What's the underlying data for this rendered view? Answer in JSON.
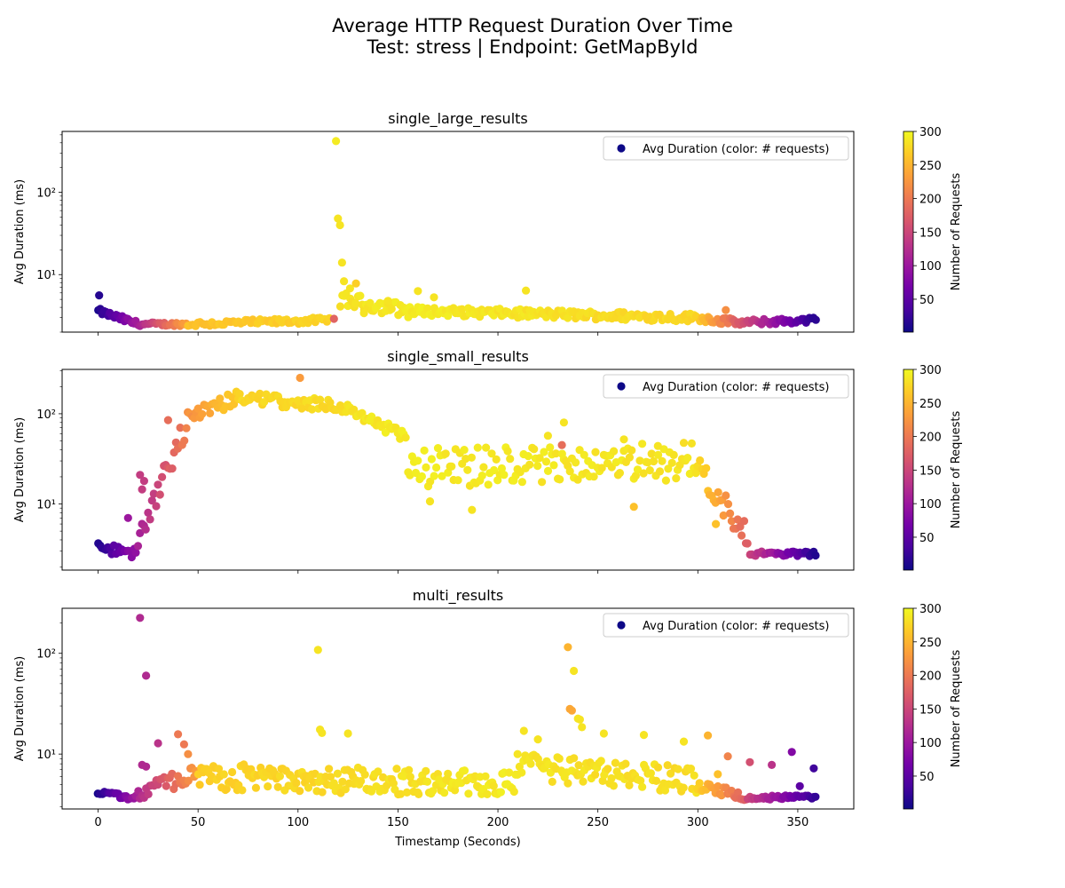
{
  "figure": {
    "title_line1": "Average HTTP Request Duration Over Time",
    "title_line2": "Test: stress | Endpoint: GetMapById",
    "xlabel": "Timestamp (Seconds)"
  },
  "colorbar": {
    "label": "Number of Requests",
    "colormap": "plasma",
    "range": [
      1,
      300
    ],
    "ticks": [
      50,
      100,
      150,
      200,
      250,
      300
    ]
  },
  "colormap_stops": [
    "#0d0887",
    "#47039f",
    "#7301a8",
    "#9c179e",
    "#bd3786",
    "#d8576b",
    "#ed7953",
    "#fb9f3a",
    "#fdca26",
    "#f0f921"
  ],
  "chart_data": [
    {
      "type": "scatter",
      "title": "single_large_results",
      "ylabel": "Avg Duration (ms)",
      "xlim": [
        -18,
        378
      ],
      "ylim": [
        2.0,
        550
      ],
      "yscale": "log",
      "xticks": [
        0,
        50,
        100,
        150,
        200,
        250,
        300,
        350
      ],
      "yticks": [
        {
          "value": 10,
          "label": "10¹"
        },
        {
          "value": 100,
          "label": "10²"
        }
      ],
      "legend": {
        "label": "Avg Duration (color: # requests)",
        "position": "upper-right"
      },
      "segments": [
        {
          "x0": 0,
          "x1": 20,
          "step": 1,
          "y0": 3.6,
          "y1": 2.5,
          "c0": 10,
          "c1": 110,
          "noise": 0.08
        },
        {
          "x0": 20,
          "x1": 45,
          "step": 1,
          "y0": 2.5,
          "y1": 2.5,
          "c0": 110,
          "c1": 240,
          "noise": 0.05
        },
        {
          "x0": 45,
          "x1": 117,
          "step": 1.2,
          "y0": 2.5,
          "y1": 2.8,
          "c0": 260,
          "c1": 275,
          "noise": 0.08
        },
        {
          "x0": 121,
          "x1": 160,
          "step": 1,
          "y0": 5.0,
          "y1": 3.5,
          "c0": 285,
          "c1": 290,
          "noise": 0.2
        },
        {
          "x0": 160,
          "x1": 300,
          "step": 1,
          "y0": 3.6,
          "y1": 3.0,
          "c0": 290,
          "c1": 275,
          "noise": 0.12
        },
        {
          "x0": 300,
          "x1": 320,
          "step": 1,
          "y0": 3.0,
          "y1": 2.6,
          "c0": 270,
          "c1": 170,
          "noise": 0.1
        },
        {
          "x0": 320,
          "x1": 360,
          "step": 1,
          "y0": 2.6,
          "y1": 2.8,
          "c0": 170,
          "c1": 10,
          "noise": 0.08
        }
      ],
      "points": [
        {
          "x": 0.5,
          "y": 5.6,
          "c": 15
        },
        {
          "x": 119,
          "y": 420,
          "c": 290
        },
        {
          "x": 120,
          "y": 48,
          "c": 285
        },
        {
          "x": 121,
          "y": 40,
          "c": 285
        },
        {
          "x": 122,
          "y": 14,
          "c": 285
        },
        {
          "x": 123,
          "y": 8.3,
          "c": 285
        },
        {
          "x": 118,
          "y": 2.9,
          "c": 180
        },
        {
          "x": 126,
          "y": 6.8,
          "c": 285
        },
        {
          "x": 129,
          "y": 7.8,
          "c": 270
        },
        {
          "x": 133,
          "y": 3.4,
          "c": 285
        },
        {
          "x": 145,
          "y": 4.8,
          "c": 285
        },
        {
          "x": 160,
          "y": 6.3,
          "c": 285
        },
        {
          "x": 168,
          "y": 5.3,
          "c": 285
        },
        {
          "x": 214,
          "y": 6.4,
          "c": 285
        },
        {
          "x": 314,
          "y": 3.7,
          "c": 220
        }
      ]
    },
    {
      "type": "scatter",
      "title": "single_small_results",
      "ylabel": "Avg Duration (ms)",
      "xlim": [
        -18,
        378
      ],
      "ylim": [
        1.85,
        310
      ],
      "yscale": "log",
      "xticks": [
        0,
        50,
        100,
        150,
        200,
        250,
        300,
        350
      ],
      "yticks": [
        {
          "value": 10,
          "label": "10¹"
        },
        {
          "value": 100,
          "label": "10²"
        }
      ],
      "legend": {
        "label": "Avg Duration (color: # requests)",
        "position": "upper-right"
      },
      "segments": [
        {
          "x0": 0,
          "x1": 20,
          "step": 1,
          "y0": 3.3,
          "y1": 2.8,
          "c0": 10,
          "c1": 100,
          "noise": 0.12
        },
        {
          "x0": 20,
          "x1": 45,
          "step": 1,
          "y0": 4.0,
          "y1": 80,
          "c0": 110,
          "c1": 210,
          "noise": 0.35
        },
        {
          "x0": 45,
          "x1": 70,
          "step": 1,
          "y0": 90,
          "y1": 150,
          "c0": 220,
          "c1": 270,
          "noise": 0.2
        },
        {
          "x0": 70,
          "x1": 125,
          "step": 1,
          "y0": 150,
          "y1": 120,
          "c0": 275,
          "c1": 280,
          "noise": 0.15
        },
        {
          "x0": 125,
          "x1": 155,
          "step": 1,
          "y0": 110,
          "y1": 55,
          "c0": 285,
          "c1": 290,
          "noise": 0.15
        },
        {
          "x0": 155,
          "x1": 300,
          "step": 1,
          "y0": 25,
          "y1": 30,
          "c0": 290,
          "c1": 285,
          "noise": 0.5
        },
        {
          "x0": 300,
          "x1": 326,
          "step": 1,
          "y0": 25,
          "y1": 4.0,
          "c0": 280,
          "c1": 170,
          "noise": 0.3
        },
        {
          "x0": 326,
          "x1": 360,
          "step": 1,
          "y0": 2.8,
          "y1": 2.8,
          "c0": 150,
          "c1": 10,
          "noise": 0.06
        }
      ],
      "points": [
        {
          "x": 101,
          "y": 250,
          "c": 230
        },
        {
          "x": 35,
          "y": 85,
          "c": 190
        },
        {
          "x": 21,
          "y": 21,
          "c": 140
        },
        {
          "x": 23,
          "y": 18,
          "c": 140
        },
        {
          "x": 22,
          "y": 14.5,
          "c": 140
        },
        {
          "x": 15,
          "y": 7.0,
          "c": 100
        },
        {
          "x": 233,
          "y": 80,
          "c": 285
        },
        {
          "x": 187,
          "y": 8.6,
          "c": 285
        },
        {
          "x": 166,
          "y": 10.7,
          "c": 285
        },
        {
          "x": 268,
          "y": 9.3,
          "c": 260
        },
        {
          "x": 309,
          "y": 6.0,
          "c": 260
        },
        {
          "x": 232,
          "y": 45,
          "c": 190
        },
        {
          "x": 263,
          "y": 52,
          "c": 285
        },
        {
          "x": 280,
          "y": 44,
          "c": 285
        },
        {
          "x": 225,
          "y": 57,
          "c": 285
        }
      ]
    },
    {
      "type": "scatter",
      "title": "multi_results",
      "ylabel": "Avg Duration (ms)",
      "xlim": [
        -18,
        378
      ],
      "ylim": [
        2.85,
        280
      ],
      "yscale": "log",
      "xticks": [
        0,
        50,
        100,
        150,
        200,
        250,
        300,
        350
      ],
      "yticks": [
        {
          "value": 10,
          "label": "10¹"
        },
        {
          "value": 100,
          "label": "10²"
        }
      ],
      "legend": {
        "label": "Avg Duration (color: # requests)",
        "position": "upper-right"
      },
      "segments": [
        {
          "x0": 0,
          "x1": 20,
          "step": 1,
          "y0": 4.2,
          "y1": 3.6,
          "c0": 10,
          "c1": 110,
          "noise": 0.06
        },
        {
          "x0": 20,
          "x1": 50,
          "step": 1,
          "y0": 4.2,
          "y1": 6.5,
          "c0": 120,
          "c1": 230,
          "noise": 0.2
        },
        {
          "x0": 50,
          "x1": 210,
          "step": 0.85,
          "y0": 6.0,
          "y1": 5.0,
          "c0": 270,
          "c1": 290,
          "noise": 0.3
        },
        {
          "x0": 210,
          "x1": 300,
          "step": 0.9,
          "y0": 7.5,
          "y1": 5.5,
          "c0": 285,
          "c1": 280,
          "noise": 0.3
        },
        {
          "x0": 300,
          "x1": 325,
          "step": 1,
          "y0": 4.8,
          "y1": 3.8,
          "c0": 270,
          "c1": 170,
          "noise": 0.1
        },
        {
          "x0": 325,
          "x1": 360,
          "step": 1,
          "y0": 3.7,
          "y1": 3.7,
          "c0": 150,
          "c1": 20,
          "noise": 0.05
        }
      ],
      "points": [
        {
          "x": 21,
          "y": 225,
          "c": 120
        },
        {
          "x": 24,
          "y": 60,
          "c": 120
        },
        {
          "x": 22,
          "y": 7.8,
          "c": 120
        },
        {
          "x": 24,
          "y": 7.5,
          "c": 120
        },
        {
          "x": 30,
          "y": 12.8,
          "c": 130
        },
        {
          "x": 40,
          "y": 15.7,
          "c": 200
        },
        {
          "x": 43,
          "y": 12.5,
          "c": 200
        },
        {
          "x": 45,
          "y": 10.0,
          "c": 220
        },
        {
          "x": 110,
          "y": 108,
          "c": 285
        },
        {
          "x": 111,
          "y": 17.5,
          "c": 285
        },
        {
          "x": 112,
          "y": 16.2,
          "c": 285
        },
        {
          "x": 125,
          "y": 16.0,
          "c": 285
        },
        {
          "x": 213,
          "y": 17.0,
          "c": 285
        },
        {
          "x": 220,
          "y": 14.0,
          "c": 285
        },
        {
          "x": 235,
          "y": 115,
          "c": 250
        },
        {
          "x": 238,
          "y": 67,
          "c": 285
        },
        {
          "x": 236,
          "y": 28,
          "c": 240
        },
        {
          "x": 237,
          "y": 27,
          "c": 240
        },
        {
          "x": 240,
          "y": 22.5,
          "c": 285
        },
        {
          "x": 241,
          "y": 22.0,
          "c": 285
        },
        {
          "x": 242,
          "y": 18.5,
          "c": 285
        },
        {
          "x": 253,
          "y": 16.0,
          "c": 285
        },
        {
          "x": 273,
          "y": 15.5,
          "c": 285
        },
        {
          "x": 293,
          "y": 13.3,
          "c": 285
        },
        {
          "x": 305,
          "y": 15.3,
          "c": 250
        },
        {
          "x": 310,
          "y": 6.3,
          "c": 260
        },
        {
          "x": 315,
          "y": 9.5,
          "c": 210
        },
        {
          "x": 326,
          "y": 8.3,
          "c": 160
        },
        {
          "x": 337,
          "y": 7.8,
          "c": 130
        },
        {
          "x": 347,
          "y": 10.5,
          "c": 80
        },
        {
          "x": 351,
          "y": 4.8,
          "c": 50
        },
        {
          "x": 358,
          "y": 7.2,
          "c": 30
        }
      ]
    }
  ]
}
